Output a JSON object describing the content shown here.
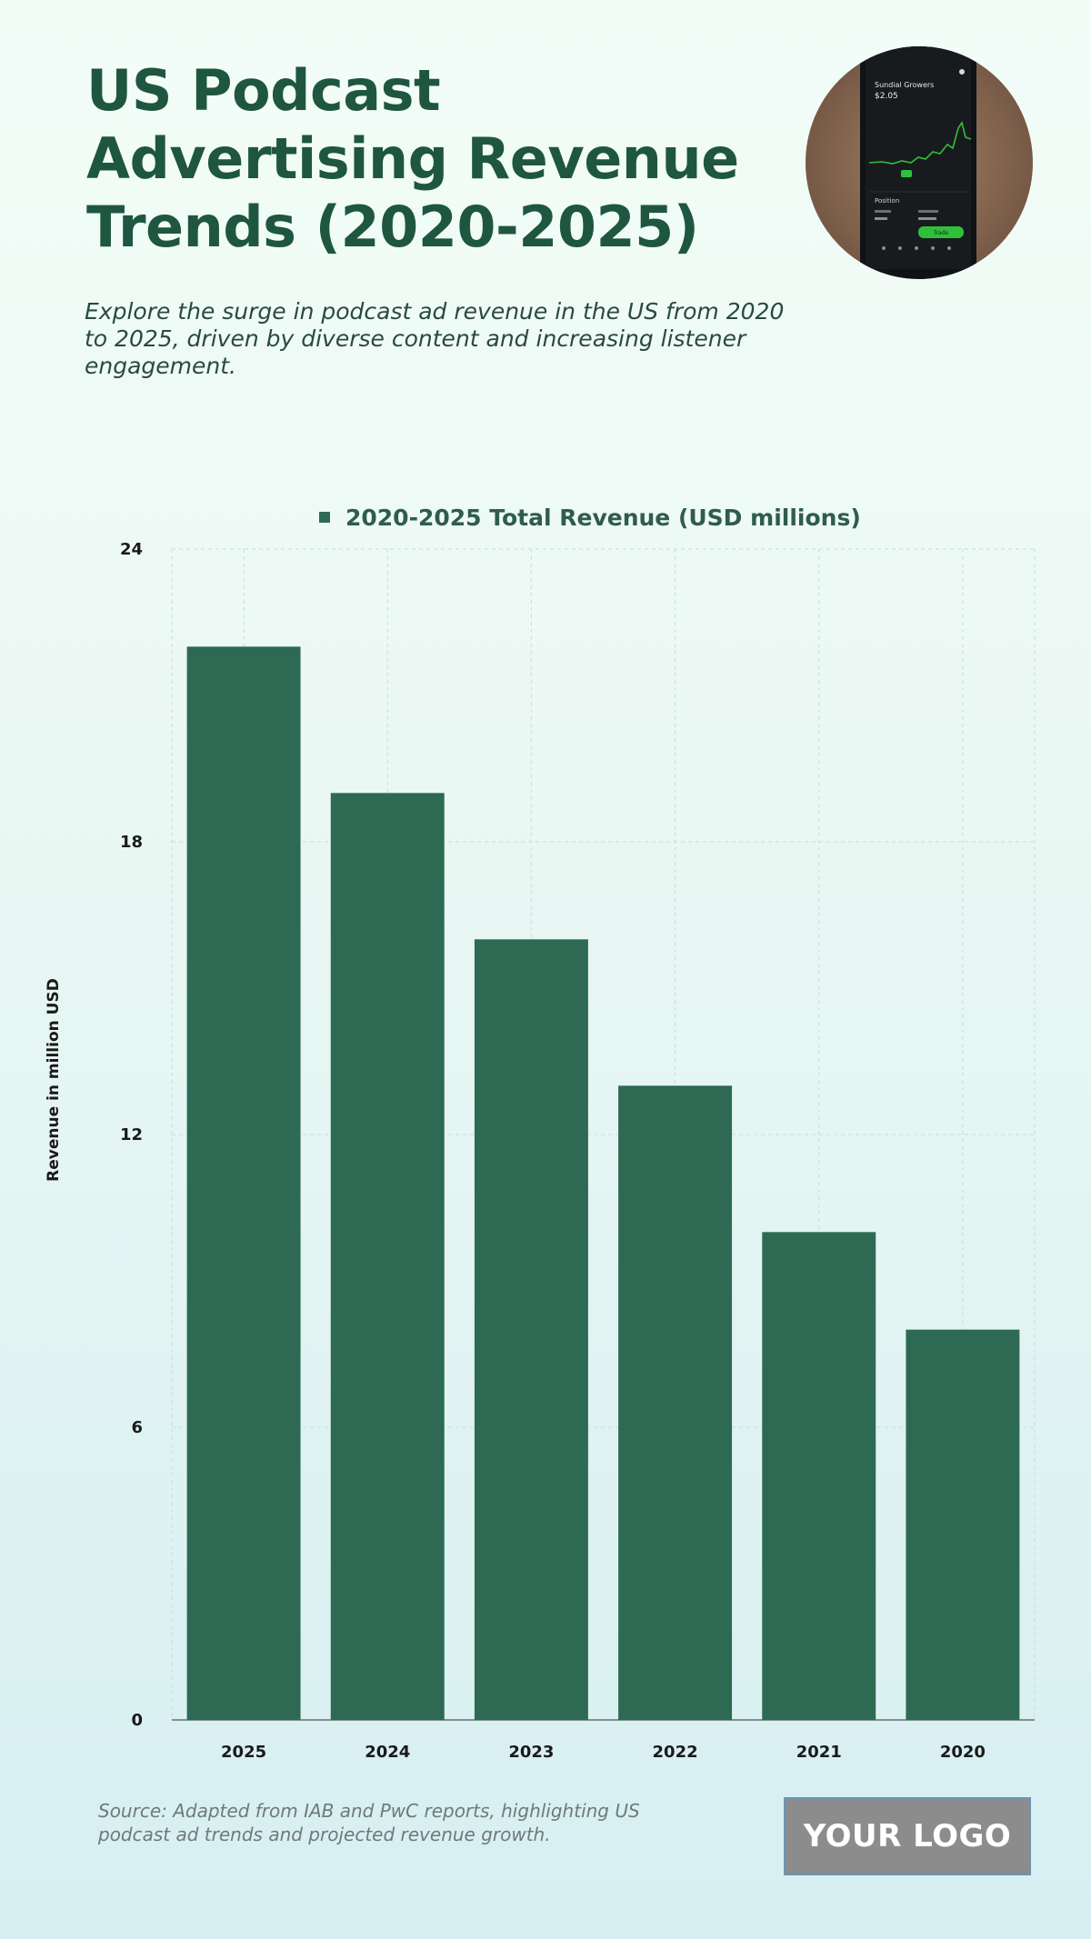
{
  "header": {
    "title": "US Podcast Advertising Revenue Trends (2020-2025)",
    "subtitle": "Explore the surge in podcast ad revenue in the US from 2020 to 2025, driven by diverse content and increasing listener engagement."
  },
  "photo": {
    "stock_name": "Sundial Growers",
    "stock_price": "$2.05",
    "section_label": "Position",
    "buy_label": "Trade"
  },
  "chart_data": {
    "type": "bar",
    "categories": [
      "2025",
      "2024",
      "2023",
      "2022",
      "2021",
      "2020"
    ],
    "series": [
      {
        "name": "2020-2025 Total Revenue (USD millions)",
        "values": [
          22,
          19,
          16,
          13,
          10,
          8
        ]
      }
    ],
    "ylabel": "Revenue in million USD",
    "xlabel": "",
    "ylim": [
      0,
      24
    ],
    "yticks": [
      "0",
      "6",
      "12",
      "18",
      "24"
    ],
    "grid": true,
    "legend_position": "top-center",
    "bar_color": "#2e6a53"
  },
  "footer": {
    "source": "Source: Adapted from IAB and PwC reports, highlighting US podcast ad trends and projected revenue growth.",
    "logo_text": "YOUR LOGO"
  }
}
